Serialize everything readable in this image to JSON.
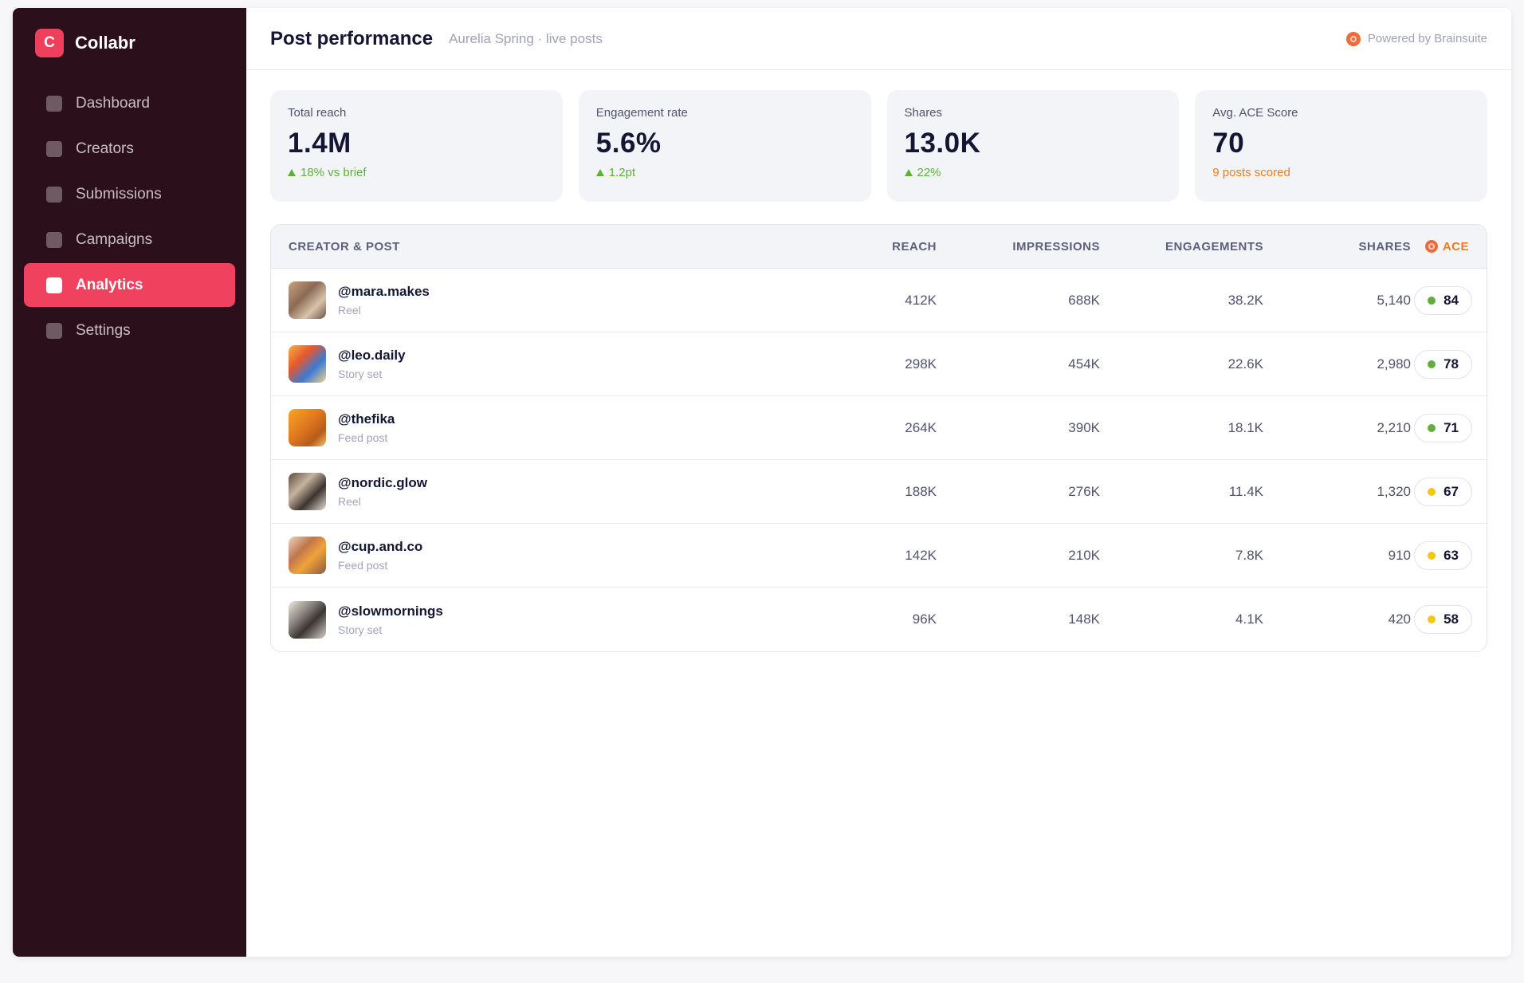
{
  "brand": {
    "logo_letter": "C",
    "name": "Collabr"
  },
  "sidebar": {
    "items": [
      {
        "label": "Dashboard",
        "active": false
      },
      {
        "label": "Creators",
        "active": false
      },
      {
        "label": "Submissions",
        "active": false
      },
      {
        "label": "Campaigns",
        "active": false
      },
      {
        "label": "Analytics",
        "active": true
      },
      {
        "label": "Settings",
        "active": false
      }
    ]
  },
  "header": {
    "title": "Post performance",
    "subtitle": "Aurelia Spring · live posts",
    "powered_by": "Powered by Brainsuite"
  },
  "kpis": [
    {
      "label": "Total reach",
      "value": "1.4M",
      "delta": "18% vs brief",
      "trend": "up",
      "color": "#5fb03a"
    },
    {
      "label": "Engagement rate",
      "value": "5.6%",
      "delta": "1.2pt",
      "trend": "up",
      "color": "#5fb03a"
    },
    {
      "label": "Shares",
      "value": "13.0K",
      "delta": "22%",
      "trend": "up",
      "color": "#5fb03a"
    },
    {
      "label": "Avg. ACE Score",
      "value": "70",
      "delta": "9 posts scored",
      "trend": "none",
      "color": "#f07b1e"
    }
  ],
  "table": {
    "columns": [
      "Creator & Post",
      "Reach",
      "Impressions",
      "Engagements",
      "Shares",
      "ACE"
    ],
    "rows": [
      {
        "handle": "@mara.makes",
        "post_type": "Reel",
        "reach": "412K",
        "impressions": "688K",
        "engagements": "38.2K",
        "shares": "5,140",
        "ace": "84",
        "ace_color": "#5fb03a"
      },
      {
        "handle": "@leo.daily",
        "post_type": "Story set",
        "reach": "298K",
        "impressions": "454K",
        "engagements": "22.6K",
        "shares": "2,980",
        "ace": "78",
        "ace_color": "#5fb03a"
      },
      {
        "handle": "@thefika",
        "post_type": "Feed post",
        "reach": "264K",
        "impressions": "390K",
        "engagements": "18.1K",
        "shares": "2,210",
        "ace": "71",
        "ace_color": "#5fb03a"
      },
      {
        "handle": "@nordic.glow",
        "post_type": "Reel",
        "reach": "188K",
        "impressions": "276K",
        "engagements": "11.4K",
        "shares": "1,320",
        "ace": "67",
        "ace_color": "#f5c518"
      },
      {
        "handle": "@cup.and.co",
        "post_type": "Feed post",
        "reach": "142K",
        "impressions": "210K",
        "engagements": "7.8K",
        "shares": "910",
        "ace": "63",
        "ace_color": "#f5c518"
      },
      {
        "handle": "@slowmornings",
        "post_type": "Story set",
        "reach": "96K",
        "impressions": "148K",
        "engagements": "4.1K",
        "shares": "420",
        "ace": "58",
        "ace_color": "#f5c518"
      }
    ]
  }
}
